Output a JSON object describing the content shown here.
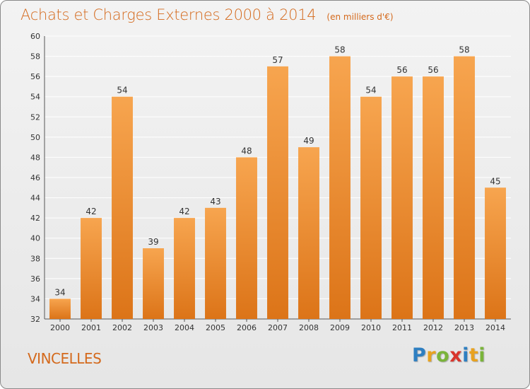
{
  "title": "Achats et Charges Externes 2000 à 2014",
  "unit_note": "(en milliers d'€)",
  "commune": "VINCELLES",
  "logo": {
    "text": "Proxiti",
    "letters": [
      {
        "ch": "P",
        "color": "#2e7fc1"
      },
      {
        "ch": "r",
        "color": "#e8a21f"
      },
      {
        "ch": "o",
        "color": "#7ab43a"
      },
      {
        "ch": "x",
        "color": "#d9342b"
      },
      {
        "ch": "i",
        "color": "#2e7fc1"
      },
      {
        "ch": "t",
        "color": "#e8a21f"
      },
      {
        "ch": "i",
        "color": "#7ab43a"
      }
    ]
  },
  "colors": {
    "bar_top": "#f7a54f",
    "bar_bottom": "#dc7418",
    "title": "#d4691c",
    "grid": "#ffffff",
    "axis_text": "#333333"
  },
  "chart_data": {
    "type": "bar",
    "title": "Achats et Charges Externes 2000 à 2014",
    "xlabel": "",
    "ylabel": "",
    "categories": [
      "2000",
      "2001",
      "2002",
      "2003",
      "2004",
      "2005",
      "2006",
      "2007",
      "2008",
      "2009",
      "2010",
      "2011",
      "2012",
      "2013",
      "2014"
    ],
    "values": [
      34,
      42,
      54,
      39,
      42,
      43,
      48,
      57,
      49,
      58,
      54,
      56,
      56,
      58,
      45
    ],
    "ylim": [
      32,
      60
    ],
    "yticks": [
      32,
      34,
      36,
      38,
      40,
      42,
      44,
      46,
      48,
      50,
      52,
      54,
      56,
      58,
      60
    ],
    "grid": true,
    "data_labels": true
  }
}
